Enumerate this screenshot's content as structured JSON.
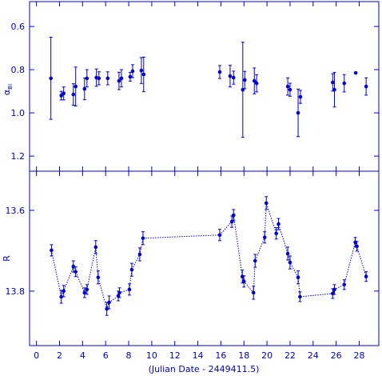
{
  "chart_data": [
    {
      "type": "errorscatter",
      "ylabel": "α",
      "ylabel_sub": "BI",
      "color": "#0000cc",
      "ylim": [
        1.27,
        0.485
      ],
      "yticks": [
        0.6,
        0.8,
        {
          "value": 1,
          "label": "1.0"
        },
        1.2
      ],
      "xlim": [
        -0.6,
        29.7
      ],
      "x": [
        1.25,
        2.15,
        2.36,
        3.2,
        3.4,
        4.17,
        4.38,
        5.2,
        5.42,
        6.18,
        7.16,
        7.37,
        8.13,
        8.34,
        9.1,
        9.3,
        15.9,
        16.8,
        17.1,
        17.9,
        18.07,
        18.9,
        19.1,
        21.8,
        22.0,
        22.7,
        22.9,
        25.7,
        25.85,
        26.7,
        27.7,
        28.6
      ],
      "values": [
        0.84,
        0.92,
        0.91,
        0.915,
        0.878,
        0.889,
        0.84,
        0.837,
        0.84,
        0.84,
        0.852,
        0.84,
        0.833,
        0.807,
        0.804,
        0.822,
        0.811,
        0.83,
        0.837,
        0.893,
        0.848,
        0.852,
        0.863,
        0.878,
        0.893,
        1.0,
        0.926,
        0.859,
        0.893,
        0.863,
        0.815,
        0.878
      ],
      "errors": [
        0.19,
        0.02,
        0.03,
        0.05,
        0.09,
        0.05,
        0.04,
        0.04,
        0.03,
        0.03,
        0.04,
        0.04,
        0.02,
        0.03,
        0.06,
        0.08,
        0.03,
        0.05,
        0.03,
        0.22,
        0.04,
        0.06,
        0.04,
        0.04,
        0.03,
        0.11,
        0.03,
        0.04,
        0.08,
        0.04,
        0,
        0.04
      ]
    },
    {
      "type": "errorline",
      "ylabel": "R",
      "xlabel": "(Julian Date - 2449411.5)",
      "color": "#0000cc",
      "ylim": [
        13.935,
        13.503
      ],
      "yticks": [
        13.6,
        13.8
      ],
      "xlim": [
        -0.6,
        29.7
      ],
      "xticks": [
        0,
        2,
        4,
        6,
        8,
        10,
        12,
        14,
        16,
        18,
        20,
        22,
        24,
        26,
        28
      ],
      "x": [
        1.3,
        2.15,
        2.36,
        3.2,
        3.4,
        4.17,
        4.38,
        5.14,
        5.35,
        6.1,
        6.3,
        7.1,
        7.2,
        8.06,
        8.27,
        8.96,
        9.24,
        15.9,
        16.95,
        17.1,
        17.86,
        18.0,
        18.83,
        18.97,
        19.8,
        19.94,
        20.8,
        21.0,
        21.8,
        22.0,
        22.7,
        22.86,
        25.7,
        25.85,
        26.7,
        27.66,
        27.8,
        28.6
      ],
      "values": [
        13.699,
        13.814,
        13.8,
        13.739,
        13.752,
        13.804,
        13.796,
        13.691,
        13.766,
        13.844,
        13.828,
        13.812,
        13.804,
        13.796,
        13.747,
        13.709,
        13.669,
        13.661,
        13.628,
        13.612,
        13.764,
        13.776,
        13.804,
        13.725,
        13.667,
        13.582,
        13.657,
        13.634,
        13.707,
        13.729,
        13.766,
        13.814,
        13.806,
        13.796,
        13.784,
        13.679,
        13.689,
        13.764
      ],
      "errors": [
        0.014,
        0.016,
        0.014,
        0.014,
        0.012,
        0.012,
        0.012,
        0.016,
        0.016,
        0.016,
        0.016,
        0.012,
        0.012,
        0.014,
        0.016,
        0.016,
        0.016,
        0.014,
        0.014,
        0.014,
        0.016,
        0.014,
        0.016,
        0.016,
        0.014,
        0.016,
        0.014,
        0.014,
        0.016,
        0.016,
        0.016,
        0.012,
        0.012,
        0.012,
        0.012,
        0.012,
        0.012,
        0.012
      ]
    }
  ]
}
